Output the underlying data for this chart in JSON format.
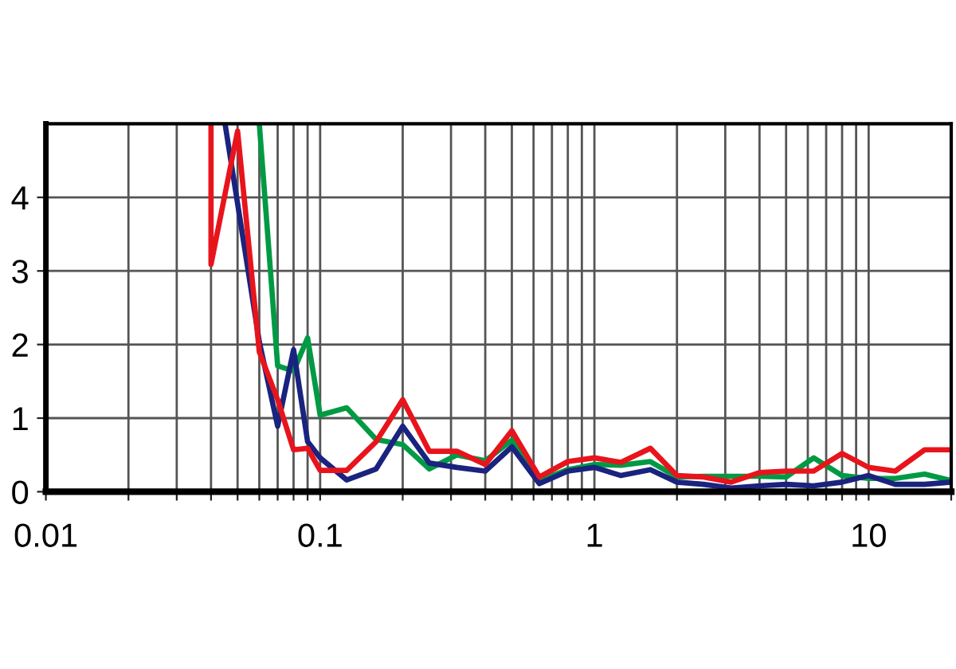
{
  "chart_data": {
    "type": "line",
    "log": "x",
    "grid": true,
    "xlim": [
      0.01,
      20
    ],
    "ylim": [
      0,
      5
    ],
    "xticks": [
      {
        "value": 0.01,
        "label": "0.01"
      },
      {
        "value": 0.02,
        "label": null
      },
      {
        "value": 0.03,
        "label": null
      },
      {
        "value": 0.04,
        "label": null
      },
      {
        "value": 0.05,
        "label": null
      },
      {
        "value": 0.06,
        "label": null
      },
      {
        "value": 0.07,
        "label": null
      },
      {
        "value": 0.08,
        "label": null
      },
      {
        "value": 0.09,
        "label": null
      },
      {
        "value": 0.1,
        "label": "0.1"
      },
      {
        "value": 0.2,
        "label": null
      },
      {
        "value": 0.3,
        "label": null
      },
      {
        "value": 0.4,
        "label": null
      },
      {
        "value": 0.5,
        "label": null
      },
      {
        "value": 0.6,
        "label": null
      },
      {
        "value": 0.7,
        "label": null
      },
      {
        "value": 0.8,
        "label": null
      },
      {
        "value": 0.9,
        "label": null
      },
      {
        "value": 1,
        "label": "1"
      },
      {
        "value": 2,
        "label": null
      },
      {
        "value": 3,
        "label": null
      },
      {
        "value": 4,
        "label": null
      },
      {
        "value": 5,
        "label": null
      },
      {
        "value": 6,
        "label": null
      },
      {
        "value": 7,
        "label": null
      },
      {
        "value": 8,
        "label": null
      },
      {
        "value": 9,
        "label": null
      },
      {
        "value": 10,
        "label": "10"
      },
      {
        "value": 20,
        "label": null
      }
    ],
    "yticks": [
      0,
      1,
      2,
      3,
      4
    ],
    "series": [
      {
        "color": "#009a44",
        "x": [
          0.06,
          0.07,
          0.08,
          0.09,
          0.1,
          0.125,
          0.16,
          0.2,
          0.25,
          0.315,
          0.4,
          0.5,
          0.63,
          0.8,
          1,
          1.25,
          1.6,
          2,
          2.5,
          3.15,
          4,
          5,
          6.3,
          8,
          10,
          12.5,
          16,
          20
        ],
        "values": [
          5,
          1.71,
          1.64,
          2.09,
          1.04,
          1.14,
          0.71,
          0.64,
          0.31,
          0.5,
          0.42,
          0.7,
          0.15,
          0.3,
          0.37,
          0.36,
          0.41,
          0.2,
          0.21,
          0.21,
          0.21,
          0.2,
          0.46,
          0.22,
          0.18,
          0.18,
          0.24,
          0.15
        ]
      },
      {
        "color": "#1a237e",
        "x": [
          0.045,
          0.06,
          0.07,
          0.08,
          0.09,
          0.1,
          0.125,
          0.16,
          0.2,
          0.25,
          0.315,
          0.4,
          0.5,
          0.63,
          0.8,
          1,
          1.25,
          1.6,
          2,
          2.5,
          3.15,
          4,
          5,
          6.3,
          8,
          10,
          12.5,
          16,
          20
        ],
        "values": [
          5,
          2.04,
          0.89,
          1.93,
          0.68,
          0.46,
          0.16,
          0.31,
          0.89,
          0.39,
          0.33,
          0.28,
          0.61,
          0.11,
          0.28,
          0.33,
          0.22,
          0.3,
          0.13,
          0.1,
          0.05,
          0.08,
          0.1,
          0.08,
          0.13,
          0.22,
          0.1,
          0.1,
          0.13
        ]
      },
      {
        "color": "#e8141c",
        "x": [
          0.04,
          0.04,
          0.05,
          0.06,
          0.07,
          0.08,
          0.09,
          0.1,
          0.125,
          0.16,
          0.2,
          0.25,
          0.315,
          0.4,
          0.5,
          0.63,
          0.8,
          1,
          1.25,
          1.6,
          2,
          2.5,
          3.15,
          4,
          5,
          6.3,
          8,
          10,
          12.5,
          16,
          20
        ],
        "values": [
          5,
          3.09,
          4.9,
          1.9,
          1.25,
          0.57,
          0.59,
          0.29,
          0.29,
          0.68,
          1.25,
          0.55,
          0.55,
          0.37,
          0.83,
          0.2,
          0.41,
          0.46,
          0.4,
          0.59,
          0.22,
          0.2,
          0.13,
          0.26,
          0.28,
          0.28,
          0.52,
          0.33,
          0.28,
          0.57,
          0.57
        ]
      }
    ]
  }
}
